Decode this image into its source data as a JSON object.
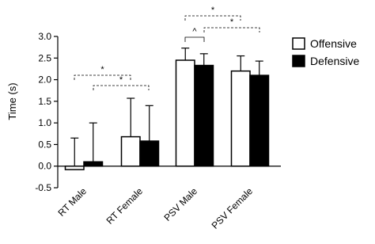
{
  "chart_data": {
    "type": "bar",
    "y_label": "Time (s)",
    "categories": [
      "RT Male",
      "RT Female",
      "PSV Male",
      "PSV Female"
    ],
    "series": [
      {
        "name": "Offensive",
        "color": "#ffffff",
        "values": [
          -0.08,
          0.68,
          2.45,
          2.2
        ],
        "errors": [
          0.73,
          0.89,
          0.28,
          0.35
        ]
      },
      {
        "name": "Defensive",
        "color": "#000000",
        "values": [
          0.1,
          0.58,
          2.33,
          2.1
        ],
        "errors": [
          0.9,
          0.82,
          0.27,
          0.33
        ]
      }
    ],
    "ylim": [
      -0.5,
      3.0
    ],
    "yticks": [
      -0.5,
      {
        "value": 0,
        "label": "0.0"
      },
      0.5,
      {
        "value": 1,
        "label": "1.0"
      },
      1.5,
      {
        "value": 2,
        "label": "2.0"
      },
      2.5,
      {
        "value": 3,
        "label": "3.0"
      }
    ],
    "annotations": [
      "*",
      "*",
      "^",
      "*",
      "*"
    ],
    "legend": "right"
  }
}
